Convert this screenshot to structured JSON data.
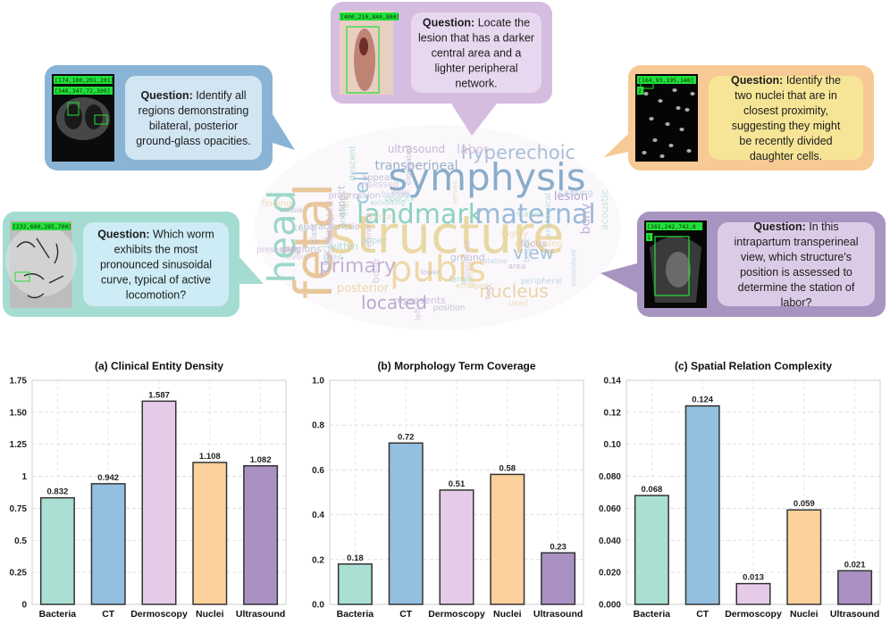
{
  "wordcloud": {
    "big_words": [
      {
        "text": "structure",
        "color": "#ead8a4"
      },
      {
        "text": "symphysis",
        "color": "#8aaccb"
      },
      {
        "text": "fetal",
        "color": "#e8c79b"
      },
      {
        "text": "head",
        "color": "#9ed7c7"
      },
      {
        "text": "landmark",
        "color": "#8cd2c0"
      },
      {
        "text": "maternal",
        "color": "#9bbad8"
      },
      {
        "text": "pubis",
        "color": "#efd8a8"
      },
      {
        "text": "hyperechoic",
        "color": "#a9bfd8"
      },
      {
        "text": "located",
        "color": "#b9aace"
      },
      {
        "text": "primary",
        "color": "#c3b2d6"
      },
      {
        "text": "view",
        "color": "#a6c2da"
      },
      {
        "text": "nucleus",
        "color": "#ecd3a6"
      },
      {
        "text": "cell",
        "color": "#9ec7dc"
      },
      {
        "text": "transperineal",
        "color": "#9aaec8"
      },
      {
        "text": "ultrasound",
        "color": "#c8b6d8"
      },
      {
        "text": "bony",
        "color": "#c3b1d6"
      },
      {
        "text": "posterior",
        "color": "#ecd7ac"
      },
      {
        "text": "lesion",
        "color": "#b2a2cc"
      },
      {
        "text": "labor",
        "color": "#d6c4e0"
      },
      {
        "text": "acoustic",
        "color": "#c8e4dc"
      }
    ],
    "small_words": [
      "glass",
      "nuclei",
      "lung",
      "opacity",
      "cells",
      "ground",
      "area",
      "right",
      "used",
      "angle",
      "bone",
      "position",
      "progression",
      "relative",
      "shadowing",
      "station",
      "ovoid",
      "lower",
      "represents",
      "causing",
      "inferior",
      "large",
      "left",
      "aspect",
      "part",
      "peripheral",
      "highly",
      "descent",
      "significant",
      "visible",
      "reference",
      "bright",
      "serves",
      "exhibiting",
      "assessing",
      "regions",
      "elongated",
      "consistent",
      "dense",
      "within",
      "situated",
      "appear",
      "presenting",
      "key",
      "finding",
      "upper",
      "assessed",
      "characteristic",
      "focus",
      "bottom",
      "echogenic",
      "anatomical",
      "top"
    ]
  },
  "callouts": [
    {
      "id": "ct",
      "label": "Question:",
      "text": "Identify all regions demonstrating bilateral, posterior ground-glass opacities.",
      "lines": [
        "Identify all",
        "regions demonstrating",
        "bilateral, posterior",
        "ground-glass opacities."
      ],
      "outer_color": "#8ab4d6",
      "inner_color": "#d2e5f3",
      "bbox_labels": [
        "[174,180,201,201]",
        "[346,347,72,399]"
      ]
    },
    {
      "id": "dermoscopy",
      "label": "Question:",
      "text": "Locate the lesion that has a darker central area and a lighter peripheral network.",
      "lines": [
        "Locate the",
        "lesion that has a darker",
        "central area and a",
        "lighter peripheral",
        "network."
      ],
      "outer_color": "#d5bde0",
      "inner_color": "#e8d8ef",
      "bbox_labels": [
        "[400,210,840,800]"
      ]
    },
    {
      "id": "nuclei",
      "label": "Question:",
      "text": "Identify the two nuclei that are in closest proximity, suggesting they might be recently divided daughter cells.",
      "lines": [
        "Identify the",
        "two nuclei that are in",
        "closest proximity,",
        "suggesting they might",
        "be recently divided",
        "daughter cells."
      ],
      "outer_color": "#f7c994",
      "inner_color": "#f6e596",
      "bbox_labels": [
        "[164,93,195,148]",
        "2"
      ]
    },
    {
      "id": "bacteria",
      "label": "Question:",
      "text": "Which worm exhibits the most pronounced sinusoidal curve, typical of active locomotion?",
      "lines": [
        "Which worm",
        "exhibits the most",
        "pronounced sinusoidal",
        "curve, typical of active",
        "locomotion?"
      ],
      "outer_color": "#a5dcd2",
      "inner_color": "#cdecf5",
      "bbox_labels": [
        "[232,600,285,700]"
      ]
    },
    {
      "id": "ultrasound",
      "label": "Question:",
      "text": "In this intrapartum transperineal view, which structure's position is assessed to determine the station of labor?",
      "lines": [
        "In this",
        "intrapartum transperineal",
        "view, which structure's",
        "position is assessed to",
        "determine the station of",
        "labor?"
      ],
      "outer_color": "#a894c0",
      "inner_color": "#dccbe6",
      "bbox_labels": [
        "[261,242,742,8",
        "1"
      ]
    }
  ],
  "chart_data": [
    {
      "type": "bar",
      "title": "(a) Clinical Entity Density",
      "categories": [
        "Bacteria",
        "CT",
        "Dermoscopy",
        "Nuclei",
        "Ultrasound"
      ],
      "values": [
        0.832,
        0.942,
        1.587,
        1.108,
        1.082
      ],
      "value_labels": [
        "0.832",
        "0.942",
        "1.587",
        "1.108",
        "1.082"
      ],
      "colors": [
        "#a9e0d3",
        "#93bfe0",
        "#e6cbe9",
        "#fdd19c",
        "#a992c3"
      ],
      "ylim": [
        0,
        1.75
      ],
      "yticks": [
        0,
        0.25,
        0.5,
        0.75,
        1.0,
        1.25,
        1.5,
        1.75
      ],
      "ytick_labels": [
        "0",
        "0.25",
        "0.5",
        "0.75",
        "1",
        "1.25",
        "1.50",
        "1.75"
      ],
      "grid": true,
      "xlabel": "",
      "ylabel": ""
    },
    {
      "type": "bar",
      "title": "(b) Morphology Term Coverage",
      "categories": [
        "Bacteria",
        "CT",
        "Dermoscopy",
        "Nuclei",
        "Ultrasound"
      ],
      "values": [
        0.18,
        0.72,
        0.51,
        0.58,
        0.23
      ],
      "value_labels": [
        "0.18",
        "0.72",
        "0.51",
        "0.58",
        "0.23"
      ],
      "colors": [
        "#a9e0d3",
        "#93bfe0",
        "#e6cbe9",
        "#fdd19c",
        "#a992c3"
      ],
      "ylim": [
        0,
        1.0
      ],
      "yticks": [
        0,
        0.2,
        0.4,
        0.6,
        0.8,
        1.0
      ],
      "ytick_labels": [
        "0.0",
        "0.2",
        "0.4",
        "0.6",
        "0.8",
        "1.0"
      ],
      "grid": true,
      "xlabel": "",
      "ylabel": ""
    },
    {
      "type": "bar",
      "title": "(c) Spatial Relation Complexity",
      "categories": [
        "Bacteria",
        "CT",
        "Dermoscopy",
        "Nuclei",
        "Ultrasound"
      ],
      "values": [
        0.068,
        0.124,
        0.013,
        0.059,
        0.021
      ],
      "value_labels": [
        "0.068",
        "0.124",
        "0.013",
        "0.059",
        "0.021"
      ],
      "colors": [
        "#a9e0d3",
        "#93bfe0",
        "#e6cbe9",
        "#fdd19c",
        "#a992c3"
      ],
      "ylim": [
        0,
        0.14
      ],
      "yticks": [
        0,
        0.02,
        0.04,
        0.06,
        0.08,
        0.1,
        0.12,
        0.14
      ],
      "ytick_labels": [
        "0.000",
        "0.020",
        "0.040",
        "0.060",
        "0.080",
        "0.10",
        "0.12",
        "0.14"
      ],
      "grid": true,
      "xlabel": "",
      "ylabel": ""
    }
  ]
}
